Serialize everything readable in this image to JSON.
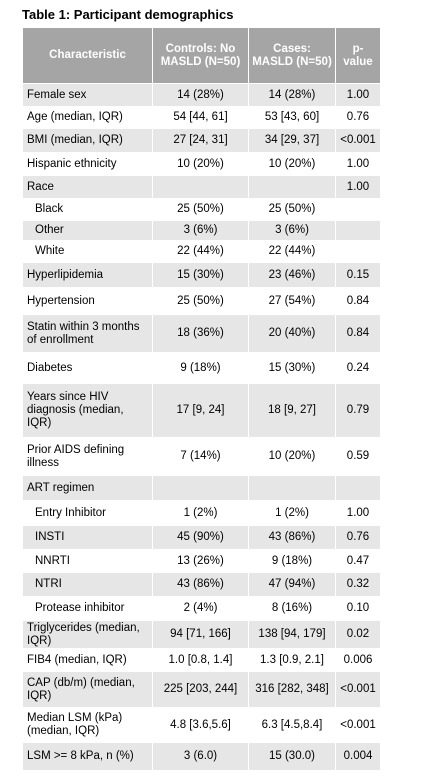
{
  "title": "Table 1: Participant demographics",
  "table": {
    "header": [
      "Characteristic",
      "Controls: No MASLD (N=50)",
      "Cases: MASLD (N=50)",
      "p-value"
    ],
    "rows": [
      {
        "cells": [
          "Female sex",
          "14 (28%)",
          "14 (28%)",
          "1.00"
        ]
      },
      {
        "cells": [
          "Age (median, IQR)",
          "54 [44, 61]",
          "53 [43, 60]",
          "0.76"
        ]
      },
      {
        "cells": [
          "BMI (median, IQR)",
          "27 [24, 31]",
          "34 [29, 37]",
          "<0.001"
        ]
      },
      {
        "cells": [
          "Hispanic ethnicity",
          "10 (20%)",
          "10 (20%)",
          "1.00"
        ]
      },
      {
        "cells": [
          "Race",
          null,
          null,
          "1.00"
        ]
      },
      {
        "cells": [
          "Black",
          "25 (50%)",
          "25 (50%)",
          null
        ],
        "indent": true
      },
      {
        "cells": [
          "Other",
          "3 (6%)",
          "3 (6%)",
          null
        ],
        "indent": true
      },
      {
        "cells": [
          "White",
          "22 (44%)",
          "22 (44%)",
          null
        ],
        "indent": true
      },
      {
        "cells": [
          "Hyperlipidemia",
          "15 (30%)",
          "23 (46%)",
          "0.15"
        ]
      },
      {
        "cells": [
          "Hypertension",
          "25 (50%)",
          "27 (54%)",
          "0.84"
        ]
      },
      {
        "cells": [
          "Statin within 3 months of enrollment",
          "18 (36%)",
          "20 (40%)",
          "0.84"
        ]
      },
      {
        "cells": [
          "Diabetes",
          "9 (18%)",
          "15 (30%)",
          "0.24"
        ]
      },
      {
        "cells": [
          "Years since HIV diagnosis (median, IQR)",
          "17 [9, 24]",
          "18 [9, 27]",
          "0.79"
        ]
      },
      {
        "cells": [
          "Prior AIDS defining illness",
          "7 (14%)",
          "10 (20%)",
          "0.59"
        ]
      },
      {
        "cells": [
          "ART regimen",
          null,
          null,
          null
        ]
      },
      {
        "cells": [
          "Entry Inhibitor",
          "1 (2%)",
          "1 (2%)",
          "1.00"
        ],
        "indent": true
      },
      {
        "cells": [
          "INSTI",
          "45 (90%)",
          "43 (86%)",
          "0.76"
        ],
        "indent": true
      },
      {
        "cells": [
          "NNRTI",
          "13 (26%)",
          "9 (18%)",
          "0.47"
        ],
        "indent": true
      },
      {
        "cells": [
          "NTRI",
          "43 (86%)",
          "47 (94%)",
          "0.32"
        ],
        "indent": true
      },
      {
        "cells": [
          "Protease inhibitor",
          "2 (4%)",
          "8 (16%)",
          "0.10"
        ],
        "indent": true
      },
      {
        "cells": [
          "Triglycerides (median, IQR)",
          "94 [71, 166]",
          "138 [94, 179]",
          "0.02"
        ]
      },
      {
        "cells": [
          "FIB4 (median, IQR)",
          "1.0 [0.8, 1.4]",
          "1.3 [0.9, 2.1]",
          "0.006"
        ]
      },
      {
        "cells": [
          "CAP (db/m) (median, IQR)",
          "225 [203, 244]",
          "316 [282, 348]",
          "<0.001"
        ]
      },
      {
        "cells": [
          "Median LSM (kPa) (median, IQR)",
          "4.8 [3.6,5.6]",
          "6.3 [4.5,8.4]",
          "<0.001"
        ]
      },
      {
        "cells": [
          "LSM >= 8 kPa, n (%)",
          "3 (6.0)",
          "15 (30.0)",
          "0.004"
        ]
      }
    ]
  }
}
